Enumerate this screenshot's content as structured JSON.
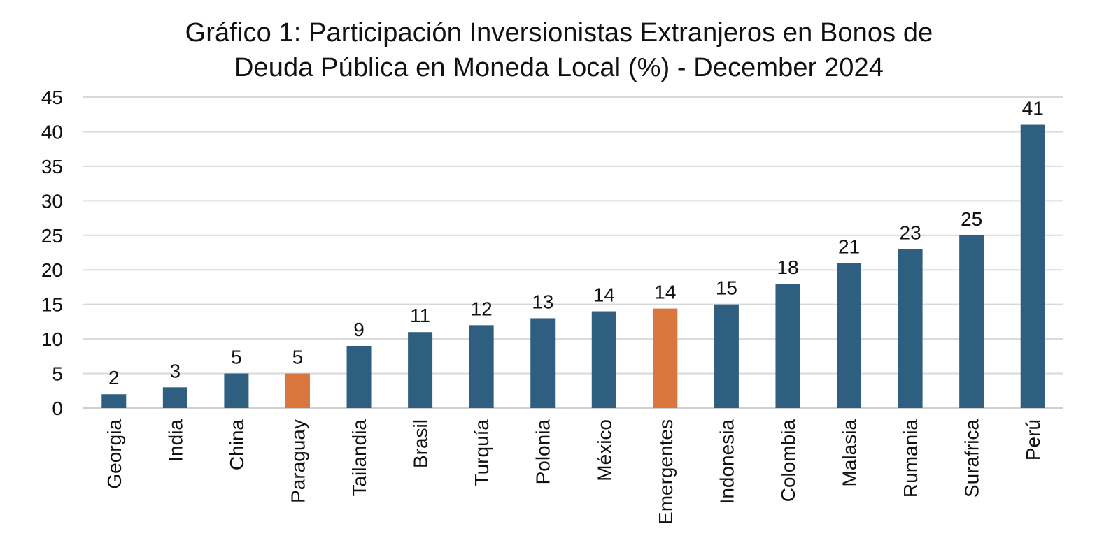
{
  "chart_data": {
    "type": "bar",
    "title": "Gráfico 1: Participación Inversionistas Extranjeros en Bonos de Deuda Pública en Moneda Local (%) - December 2024",
    "title_lines": [
      "Gráfico 1: Participación Inversionistas Extranjeros en Bonos de",
      "Deuda Pública en Moneda Local (%) - December 2024"
    ],
    "xlabel": "",
    "ylabel": "",
    "categories": [
      "Georgia",
      "India",
      "China",
      "Paraguay",
      "Tailandia",
      "Brasil",
      "Turquía",
      "Polonia",
      "México",
      "Emergentes",
      "Indonesia",
      "Colombia",
      "Malasia",
      "Rumania",
      "Surafrica",
      "Perú"
    ],
    "values": [
      2,
      3,
      5,
      5,
      9,
      11,
      12,
      13,
      14,
      14.4,
      15,
      18,
      21,
      23,
      25,
      41
    ],
    "data_labels": [
      "2",
      "3",
      "5",
      "5",
      "9",
      "11",
      "12",
      "13",
      "14",
      "14",
      "15",
      "18",
      "21",
      "23",
      "25",
      "41"
    ],
    "highlighted_categories": [
      "Paraguay",
      "Emergentes"
    ],
    "ylim": [
      0,
      45
    ],
    "yticks": [
      0,
      5,
      10,
      15,
      20,
      25,
      30,
      35,
      40,
      45
    ],
    "grid": true,
    "legend": "none"
  },
  "colors": {
    "default_bar": "#2f5f80",
    "highlight_bar": "#d9773f",
    "grid": "#d9d9d9",
    "text": "#111111"
  }
}
